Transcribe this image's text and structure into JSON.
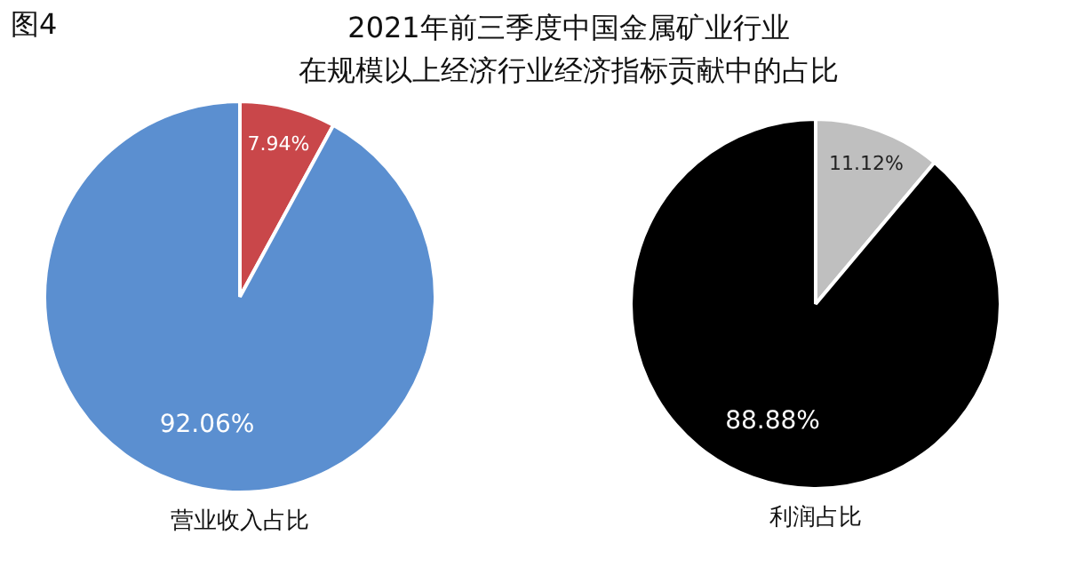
{
  "chart_data": [
    {
      "type": "other",
      "title": "2021年前三季度中国金属矿业行业",
      "subtitle": "在规模以上经济行业经济指标贡献中的占比",
      "annotations": [
        "图4"
      ]
    },
    {
      "type": "pie",
      "xlabel": "营业收入占比",
      "categories": [
        null,
        null
      ],
      "values": [
        7.94,
        92.06
      ],
      "colors": [
        "#c9474a",
        "#5b8fd0"
      ],
      "value_labels": [
        "7.94%",
        "92.06%"
      ]
    },
    {
      "type": "pie",
      "xlabel": "利润占比",
      "categories": [
        null,
        null
      ],
      "values": [
        11.12,
        88.88
      ],
      "colors": [
        "#bfbfbf",
        "#000000"
      ],
      "value_labels": [
        "11.12%",
        "88.88%"
      ]
    }
  ]
}
